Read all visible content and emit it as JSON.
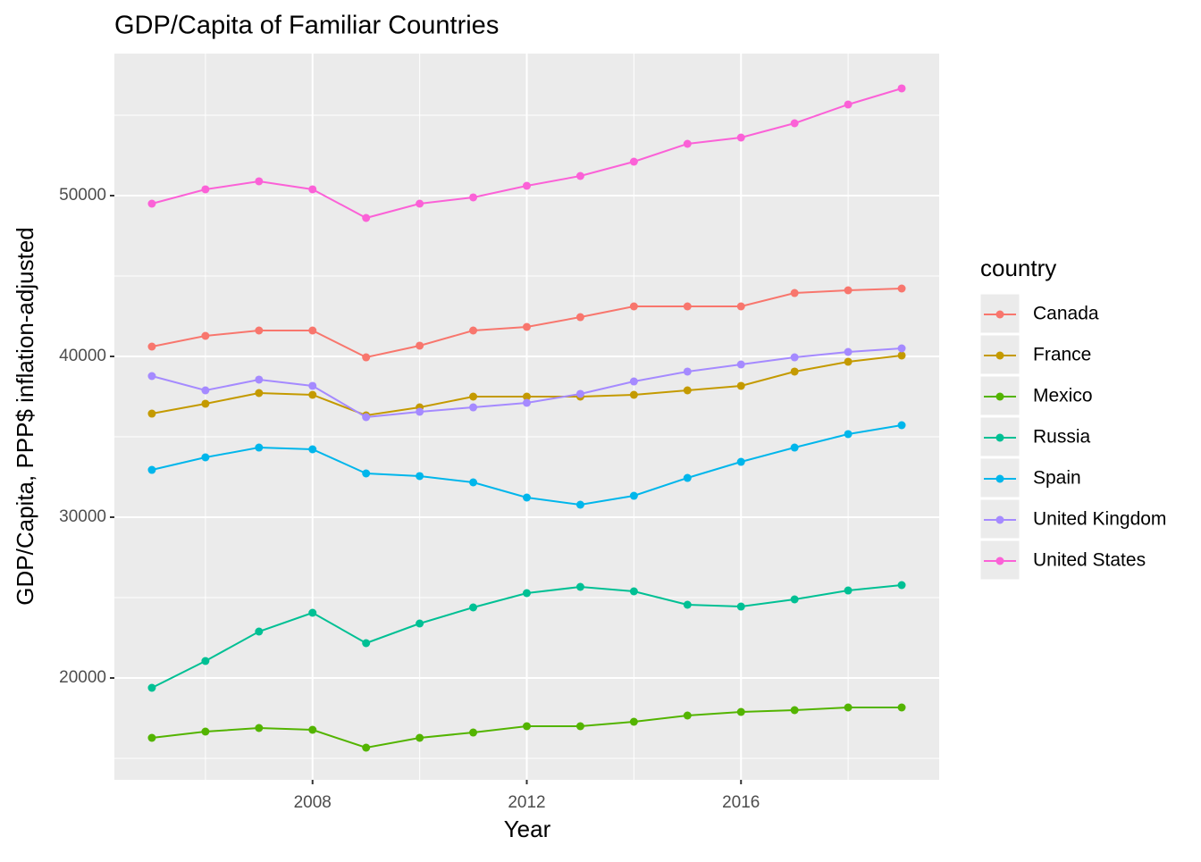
{
  "chart_data": {
    "type": "line",
    "title": "GDP/Capita of Familiar Countries",
    "x_label": "Year",
    "y_label": "GDP/Capita, PPP$ inflation-adjusted",
    "legend_title": "country",
    "x": [
      2005,
      2006,
      2007,
      2008,
      2009,
      2010,
      2011,
      2012,
      2013,
      2014,
      2015,
      2016,
      2017,
      2018,
      2019
    ],
    "xlim": [
      2004.3,
      2019.7
    ],
    "xticks": [
      2008,
      2012,
      2016
    ],
    "ylim": [
      13667,
      58833
    ],
    "yticks": [
      20000,
      30000,
      40000,
      50000
    ],
    "grid": true,
    "legend": "right",
    "series": [
      {
        "name": "Canada",
        "color": "#F8766D",
        "values": [
          40611,
          41278,
          41611,
          41611,
          39944,
          40667,
          41611,
          41833,
          42444,
          43111,
          43111,
          43111,
          43944,
          44111,
          44222
        ]
      },
      {
        "name": "France",
        "color": "#C49A00",
        "values": [
          36444,
          37056,
          37722,
          37611,
          36333,
          36833,
          37500,
          37500,
          37500,
          37611,
          37889,
          38167,
          39056,
          39667,
          40056
        ]
      },
      {
        "name": "Mexico",
        "color": "#53B400",
        "values": [
          16278,
          16667,
          16889,
          16778,
          15667,
          16278,
          16611,
          17000,
          17000,
          17278,
          17667,
          17889,
          18000,
          18167,
          18167
        ]
      },
      {
        "name": "Russia",
        "color": "#00C094",
        "values": [
          19389,
          21056,
          22889,
          24056,
          22167,
          23389,
          24389,
          25278,
          25667,
          25389,
          24556,
          24444,
          24889,
          25444,
          25778
        ]
      },
      {
        "name": "Spain",
        "color": "#00B6EB",
        "values": [
          32944,
          33722,
          34333,
          34222,
          32722,
          32556,
          32167,
          31222,
          30778,
          31333,
          32444,
          33444,
          34333,
          35167,
          35722
        ]
      },
      {
        "name": "United Kingdom",
        "color": "#A58AFF",
        "values": [
          38778,
          37889,
          38556,
          38167,
          36222,
          36556,
          36833,
          37111,
          37667,
          38444,
          39056,
          39500,
          39944,
          40278,
          40500
        ]
      },
      {
        "name": "United States",
        "color": "#FB61D7",
        "values": [
          49500,
          50389,
          50889,
          50389,
          48611,
          49500,
          49889,
          50611,
          51222,
          52111,
          53222,
          53611,
          54500,
          55667,
          56667
        ]
      }
    ]
  }
}
